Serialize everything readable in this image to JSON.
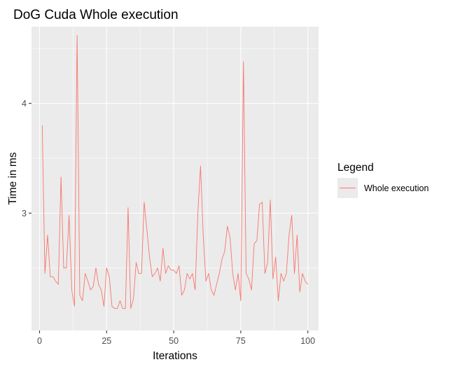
{
  "chart_data": {
    "type": "line",
    "title": "DoG Cuda Whole execution",
    "xlabel": "Iterations",
    "ylabel": "Time in ms",
    "xlim": [
      -3,
      104
    ],
    "ylim": [
      1.93,
      4.7
    ],
    "x_ticks": [
      0,
      25,
      50,
      75,
      100
    ],
    "y_ticks": [
      3,
      4
    ],
    "grid": true,
    "legend": {
      "title": "Legend",
      "position": "right",
      "entries": [
        "Whole execution"
      ]
    },
    "series": [
      {
        "name": "Whole execution",
        "color": "#f8766d",
        "x": [
          1,
          2,
          3,
          4,
          5,
          6,
          7,
          8,
          9,
          10,
          11,
          12,
          13,
          14,
          15,
          16,
          17,
          18,
          19,
          20,
          21,
          22,
          23,
          24,
          25,
          26,
          27,
          28,
          29,
          30,
          31,
          32,
          33,
          34,
          35,
          36,
          37,
          38,
          39,
          40,
          41,
          42,
          43,
          44,
          45,
          46,
          47,
          48,
          49,
          50,
          51,
          52,
          53,
          54,
          55,
          56,
          57,
          58,
          59,
          60,
          61,
          62,
          63,
          64,
          65,
          66,
          67,
          68,
          69,
          70,
          71,
          72,
          73,
          74,
          75,
          76,
          77,
          78,
          79,
          80,
          81,
          82,
          83,
          84,
          85,
          86,
          87,
          88,
          89,
          90,
          91,
          92,
          93,
          94,
          95,
          96,
          97,
          98,
          99,
          100
        ],
        "y": [
          3.8,
          2.45,
          2.8,
          2.42,
          2.42,
          2.38,
          2.35,
          3.33,
          2.5,
          2.5,
          2.98,
          2.3,
          2.15,
          4.62,
          2.25,
          2.2,
          2.45,
          2.38,
          2.3,
          2.33,
          2.5,
          2.35,
          2.3,
          2.15,
          2.5,
          2.42,
          2.15,
          2.13,
          2.13,
          2.2,
          2.13,
          2.13,
          3.05,
          2.13,
          2.22,
          2.55,
          2.45,
          2.45,
          3.1,
          2.85,
          2.6,
          2.42,
          2.45,
          2.5,
          2.38,
          2.68,
          2.45,
          2.52,
          2.48,
          2.48,
          2.45,
          2.52,
          2.25,
          2.3,
          2.45,
          2.4,
          2.45,
          2.3,
          3.0,
          3.43,
          2.8,
          2.38,
          2.45,
          2.3,
          2.25,
          2.35,
          2.45,
          2.58,
          2.65,
          2.88,
          2.78,
          2.45,
          2.3,
          2.45,
          2.2,
          4.38,
          2.45,
          2.4,
          2.3,
          2.72,
          2.75,
          3.08,
          3.1,
          2.45,
          2.55,
          3.12,
          2.4,
          2.6,
          2.2,
          2.45,
          2.38,
          2.45,
          2.8,
          2.98,
          2.45,
          2.8,
          2.28,
          2.45,
          2.38,
          2.35
        ]
      }
    ]
  }
}
